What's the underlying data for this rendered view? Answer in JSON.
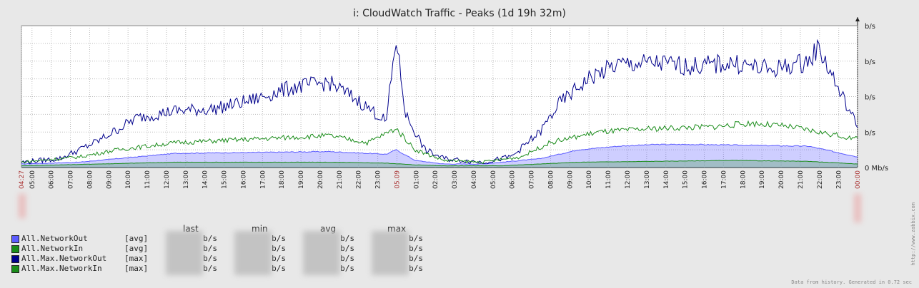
{
  "chart_data": {
    "type": "line",
    "title": "i: CloudWatch Traffic - Peaks  (1d 19h 32m)",
    "ylabel": "",
    "yticks": [
      "0 Mb/s",
      "b/s",
      "b/s",
      "b/s",
      "b/s"
    ],
    "yrange": [
      0,
      8
    ],
    "grid": true,
    "x_ticks": [
      "04:27",
      "05:00",
      "06:00",
      "07:00",
      "08:00",
      "09:00",
      "10:00",
      "11:00",
      "12:00",
      "13:00",
      "14:00",
      "15:00",
      "16:00",
      "17:00",
      "18:00",
      "19:00",
      "20:00",
      "21:00",
      "22:00",
      "23:00",
      "05.09",
      "01:00",
      "02:00",
      "03:00",
      "04:00",
      "05:00",
      "06:00",
      "07:00",
      "08:00",
      "09:00",
      "10:00",
      "11:00",
      "12:00",
      "13:00",
      "14:00",
      "15:00",
      "16:00",
      "17:00",
      "18:00",
      "19:00",
      "20:00",
      "21:00",
      "22:00",
      "23:00",
      "00:00"
    ],
    "x_red_ticks": [
      "04:27",
      "05.09",
      "00:00"
    ],
    "x_hours": [
      0,
      0.55,
      1.55,
      2.55,
      3.55,
      4.55,
      5.55,
      6.55,
      7.55,
      8.55,
      9.55,
      10.55,
      11.55,
      12.55,
      13.55,
      14.55,
      15.55,
      16.55,
      17.55,
      18.55,
      19.55,
      20.55,
      21.55,
      22.55,
      23.55,
      24.55,
      25.55,
      26.55,
      27.55,
      28.55,
      29.55,
      30.55,
      31.55,
      32.55,
      33.55,
      34.55,
      35.55,
      36.55,
      37.55,
      38.55,
      39.55,
      40.55,
      41.55,
      42.55,
      43.53
    ],
    "series": [
      {
        "name": "All.NetworkOut",
        "color": "#5c5cff",
        "fill": true,
        "points": [
          [
            0,
            0.2
          ],
          [
            3,
            0.3
          ],
          [
            6,
            0.6
          ],
          [
            8,
            0.8
          ],
          [
            12,
            0.85
          ],
          [
            16,
            0.9
          ],
          [
            19,
            0.75
          ],
          [
            19.5,
            1.0
          ],
          [
            20.5,
            0.4
          ],
          [
            22,
            0.2
          ],
          [
            24,
            0.2
          ],
          [
            25,
            0.3
          ],
          [
            27,
            0.5
          ],
          [
            29,
            1.0
          ],
          [
            31,
            1.2
          ],
          [
            33,
            1.3
          ],
          [
            35,
            1.3
          ],
          [
            38,
            1.25
          ],
          [
            41,
            1.2
          ],
          [
            43.53,
            0.6
          ]
        ]
      },
      {
        "name": "All.NetworkIn",
        "color": "#1a8c1a",
        "fill": true,
        "points": [
          [
            0,
            0.1
          ],
          [
            4,
            0.2
          ],
          [
            8,
            0.3
          ],
          [
            12,
            0.3
          ],
          [
            16,
            0.3
          ],
          [
            19,
            0.25
          ],
          [
            20.5,
            0.15
          ],
          [
            22,
            0.1
          ],
          [
            25,
            0.1
          ],
          [
            27,
            0.2
          ],
          [
            29,
            0.3
          ],
          [
            33,
            0.35
          ],
          [
            37,
            0.4
          ],
          [
            41,
            0.35
          ],
          [
            43.53,
            0.2
          ]
        ]
      },
      {
        "name": "All.Max.NetworkOut",
        "color": "#00008b",
        "fill": false,
        "points": [
          [
            0,
            0.3
          ],
          [
            2,
            0.5
          ],
          [
            4,
            1.5
          ],
          [
            6,
            2.8
          ],
          [
            8,
            3.2
          ],
          [
            10,
            3.3
          ],
          [
            12,
            3.8
          ],
          [
            14,
            4.5
          ],
          [
            16,
            4.8
          ],
          [
            17.5,
            3.8
          ],
          [
            19,
            2.6
          ],
          [
            19.5,
            7.3
          ],
          [
            20,
            3.0
          ],
          [
            21,
            1.0
          ],
          [
            22,
            0.5
          ],
          [
            24,
            0.3
          ],
          [
            25.5,
            0.6
          ],
          [
            27,
            2.0
          ],
          [
            28,
            3.6
          ],
          [
            29.5,
            5.0
          ],
          [
            31,
            5.8
          ],
          [
            33,
            5.9
          ],
          [
            35,
            5.7
          ],
          [
            37,
            5.9
          ],
          [
            39,
            5.5
          ],
          [
            41,
            6.0
          ],
          [
            41.5,
            6.8
          ],
          [
            42.5,
            4.5
          ],
          [
            43.53,
            2.3
          ]
        ]
      },
      {
        "name": "All.Max.NetworkIn",
        "color": "#1a8c1a",
        "fill": false,
        "points": [
          [
            0,
            0.3
          ],
          [
            3,
            0.6
          ],
          [
            5,
            1.0
          ],
          [
            8,
            1.4
          ],
          [
            12,
            1.6
          ],
          [
            16,
            1.8
          ],
          [
            18,
            1.4
          ],
          [
            19.5,
            2.2
          ],
          [
            20.5,
            1.0
          ],
          [
            22,
            0.4
          ],
          [
            24,
            0.3
          ],
          [
            26,
            0.6
          ],
          [
            27.5,
            1.4
          ],
          [
            30,
            2.0
          ],
          [
            33,
            2.2
          ],
          [
            36,
            2.3
          ],
          [
            38,
            2.5
          ],
          [
            40,
            2.3
          ],
          [
            43.53,
            1.6
          ]
        ]
      }
    ]
  },
  "legend": {
    "headers": {
      "last": "last",
      "min": "min",
      "avg": "avg",
      "max": "max"
    },
    "rows": [
      {
        "name": "All.NetworkOut",
        "agg": "[avg]",
        "color": "#5c5cff",
        "unit": "b/s"
      },
      {
        "name": "All.NetworkIn",
        "agg": "[avg]",
        "color": "#1a8c1a",
        "unit": "b/s"
      },
      {
        "name": "All.Max.NetworkOut",
        "agg": "[max]",
        "color": "#00008b",
        "unit": "b/s"
      },
      {
        "name": "All.Max.NetworkIn",
        "agg": "[max]",
        "color": "#1a8c1a",
        "unit": "b/s"
      }
    ]
  },
  "footer": "Data from history. Generated in 0.72 sec",
  "watermark": "http://www.zabbix.com"
}
